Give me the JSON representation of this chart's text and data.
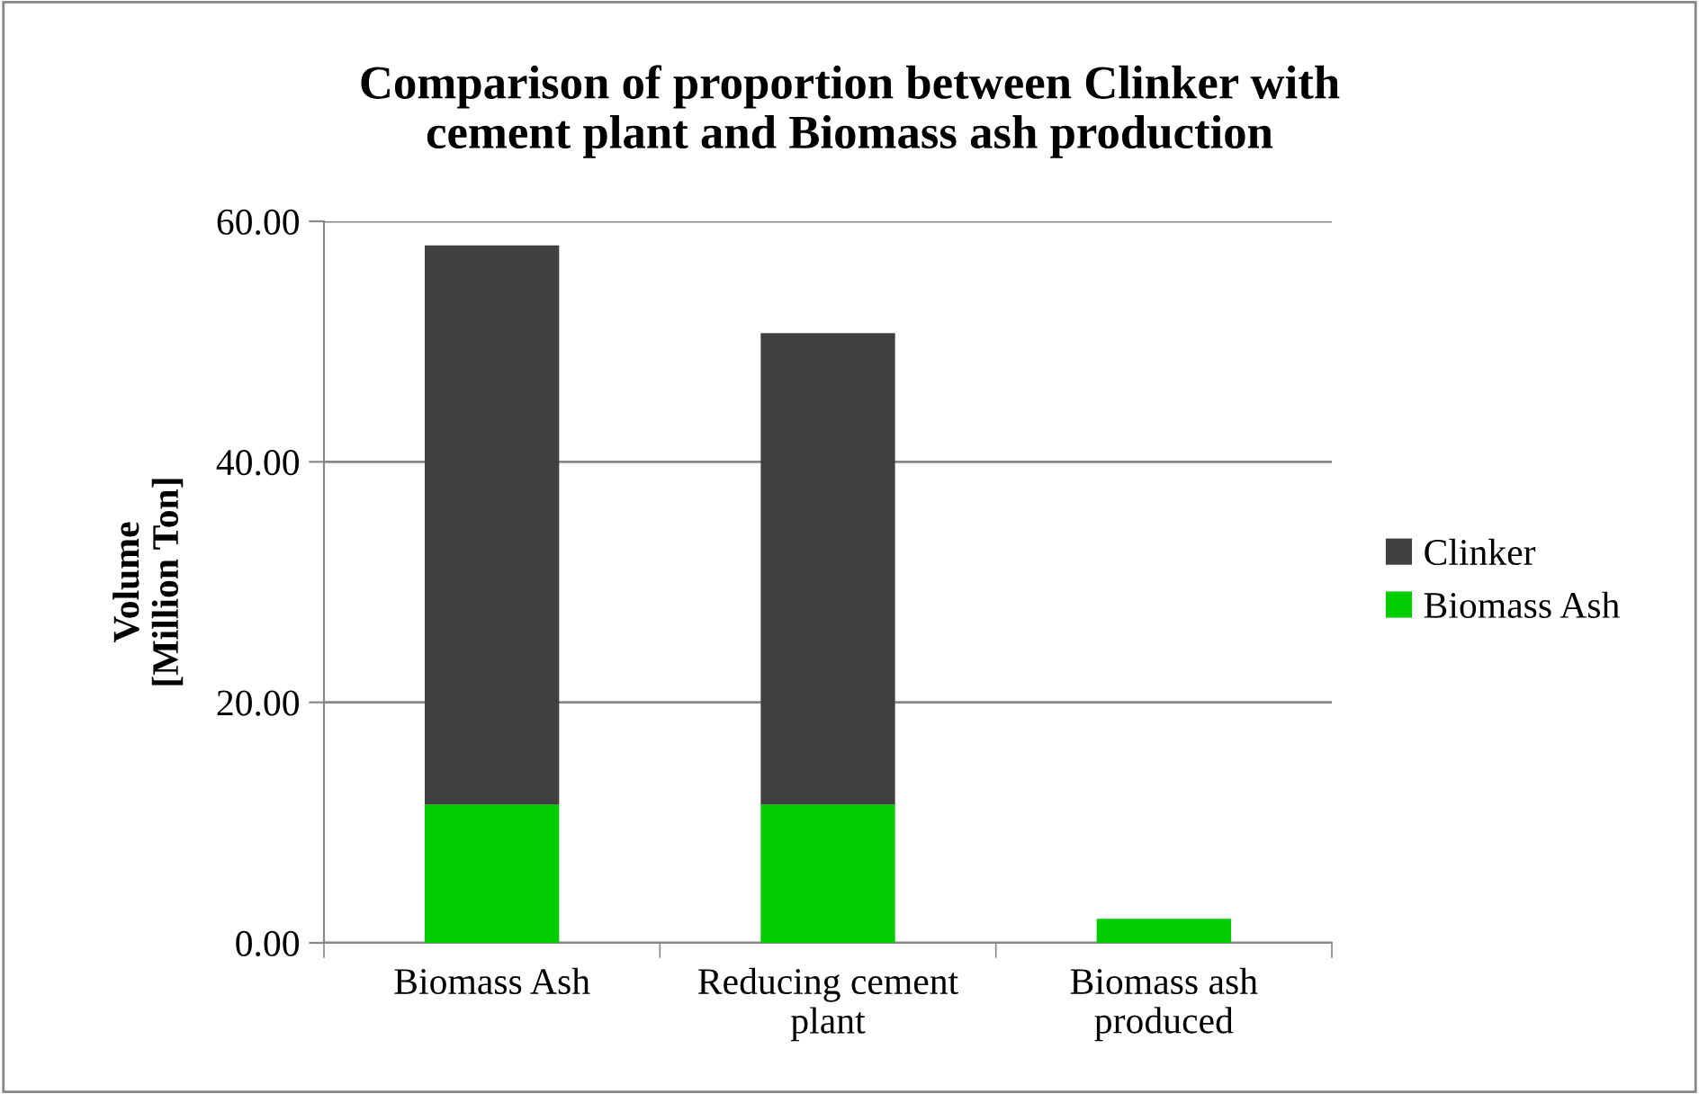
{
  "chart_data": {
    "type": "bar",
    "title": "Comparison of proportion between Clinker with\ncement plant and Biomass ash production",
    "ylabel": "Volume\n[Million Ton]",
    "categories": [
      "Biomass Ash",
      "Reducing cement\nplant",
      "Biomass ash\nproduced"
    ],
    "series": [
      {
        "name": "Biomass Ash",
        "color": "#00cc00",
        "values": [
          11.5,
          11.5,
          2.0
        ]
      },
      {
        "name": "Clinker",
        "color": "#404040",
        "values": [
          46.5,
          39.2,
          null
        ]
      }
    ],
    "stacked": true,
    "ylim": [
      0,
      60
    ],
    "yticks": [
      {
        "value": 0,
        "label": "0.00"
      },
      {
        "value": 20,
        "label": "20.00"
      },
      {
        "value": 40,
        "label": "40.00"
      },
      {
        "value": 60,
        "label": "60.00"
      }
    ],
    "grid": "y",
    "legend": "right"
  }
}
